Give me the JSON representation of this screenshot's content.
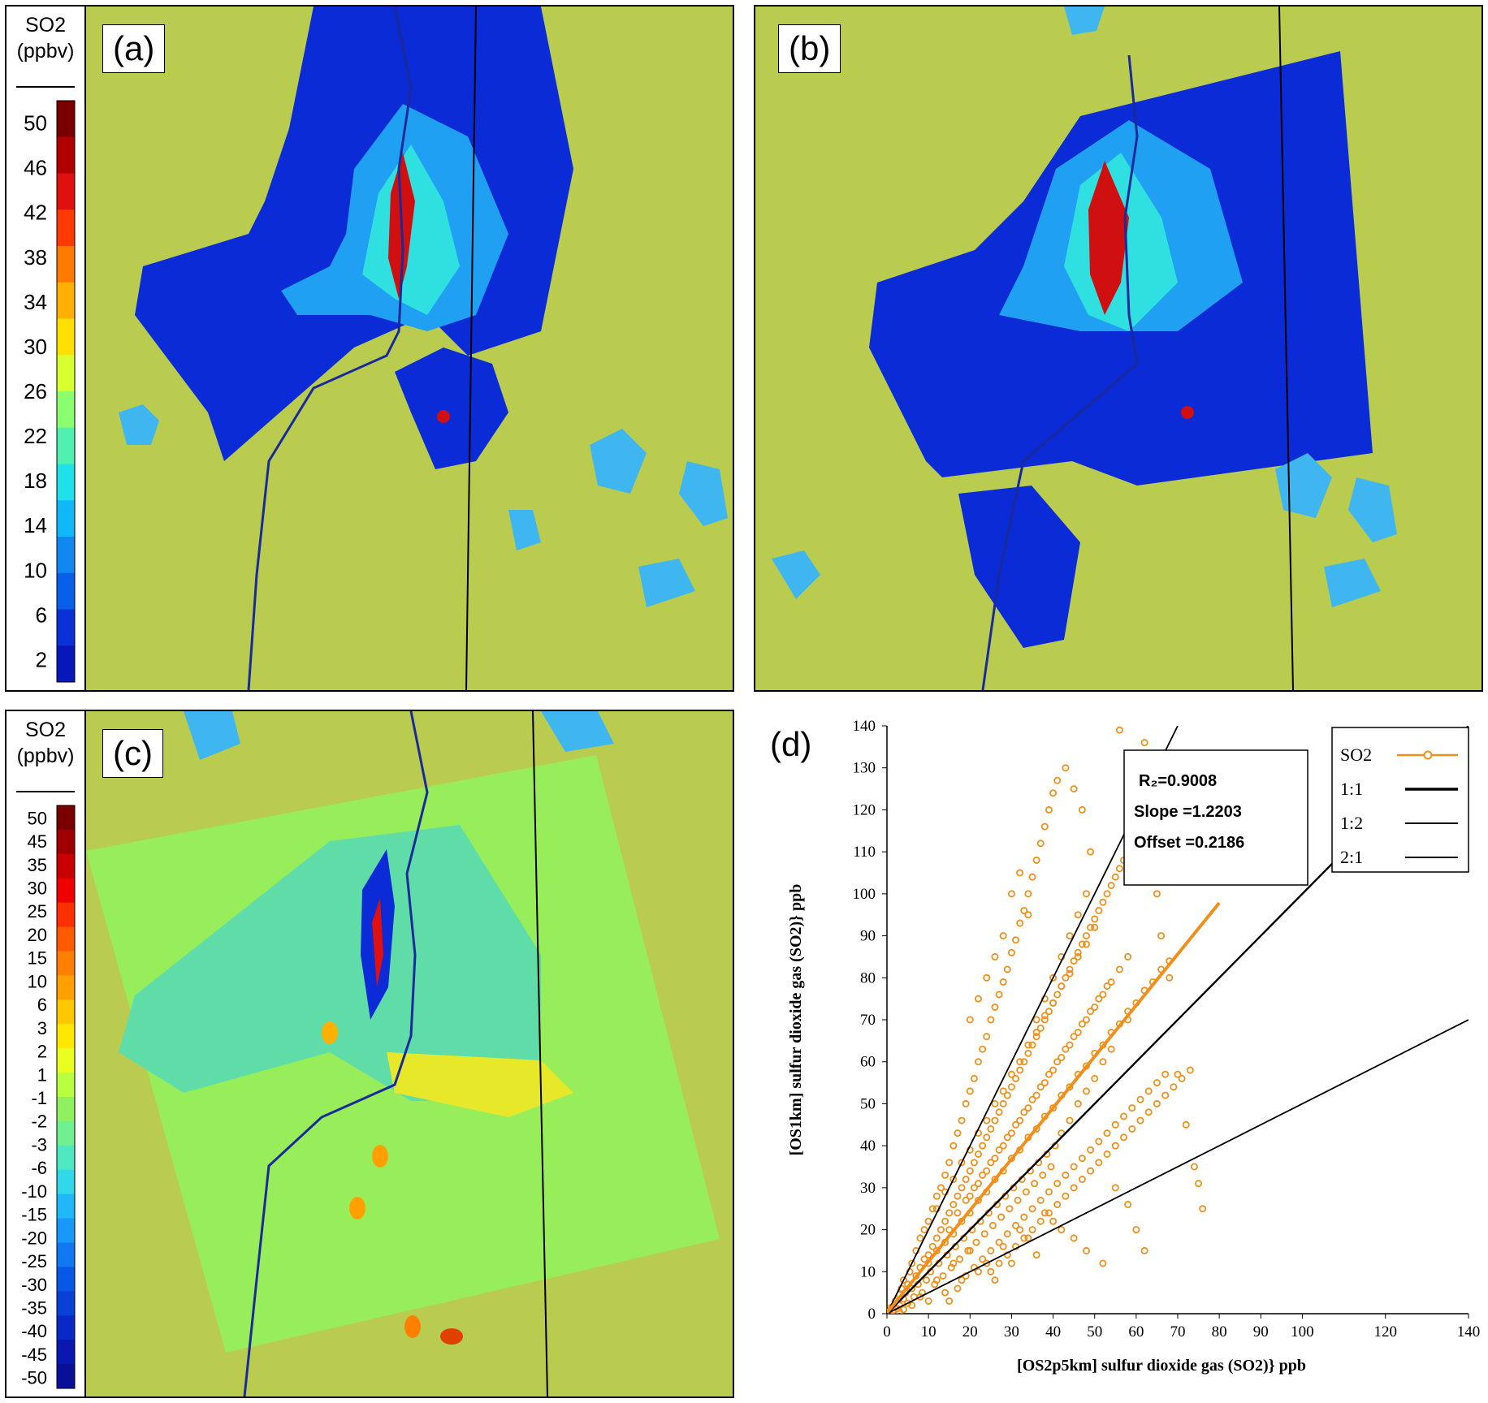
{
  "panels": {
    "a": {
      "label": "(a)"
    },
    "b": {
      "label": "(b)"
    },
    "c": {
      "label": "(c)"
    },
    "d": {
      "label": "(d)"
    }
  },
  "colorbar_a": {
    "title": "SO2",
    "unit": "(ppbv)",
    "ticks": [
      "50",
      "46",
      "42",
      "38",
      "34",
      "30",
      "26",
      "22",
      "18",
      "14",
      "10",
      "6",
      "2"
    ],
    "colors": [
      "#7a0000",
      "#b00000",
      "#e01010",
      "#ff3a00",
      "#ff7a00",
      "#ffb000",
      "#ffe000",
      "#d8ff30",
      "#8aff70",
      "#50f0b0",
      "#20e0e8",
      "#10b8f8",
      "#1088f0",
      "#0860e8",
      "#0a30d8",
      "#0818b8"
    ]
  },
  "colorbar_c": {
    "title": "SO2",
    "unit": "(ppbv)",
    "ticks": [
      "50",
      "45",
      "35",
      "30",
      "25",
      "20",
      "15",
      "10",
      "6",
      "3",
      "2",
      "1",
      "-1",
      "-2",
      "-3",
      "-6",
      "-10",
      "-15",
      "-20",
      "-25",
      "-30",
      "-35",
      "-40",
      "-45",
      "-50"
    ],
    "colors": [
      "#7a0000",
      "#a00000",
      "#c80000",
      "#f00000",
      "#ff3000",
      "#ff5a00",
      "#ff8000",
      "#ffa000",
      "#ffc800",
      "#ffe800",
      "#e8ff20",
      "#b8ff40",
      "#90f060",
      "#70f090",
      "#50e8c0",
      "#30d8e8",
      "#20b8f8",
      "#1898f8",
      "#1078f0",
      "#0858e8",
      "#0840d8",
      "#0828c8",
      "#0818b0",
      "#081098"
    ],
    "neutral_color": "#98ee5a"
  },
  "map_colors": {
    "land": "#b9cc4f",
    "water": "#3fb6f0",
    "outline": "#1a2a9a",
    "plume_low": "#0a2bd6",
    "plume_mid": "#1fa0f2",
    "plume_high": "#d01010"
  },
  "chart_data": {
    "type": "scatter",
    "title": "",
    "xlabel": "[OS2p5km]  sulfur  dioxide gas (SO2)} ppb",
    "ylabel": "[OS1km] sulfur  dioxide gas (SO2)} ppb",
    "xlim": [
      0,
      140
    ],
    "ylim": [
      0,
      140
    ],
    "x_ticks": [
      0,
      10,
      20,
      30,
      40,
      50,
      60,
      70,
      80,
      90,
      100,
      120,
      140
    ],
    "y_ticks": [
      0,
      10,
      20,
      30,
      40,
      50,
      60,
      70,
      80,
      90,
      100,
      110,
      120,
      130,
      140
    ],
    "stats": {
      "r2": "R₂=0.9008",
      "slope": "Slope =1.2203",
      "offset": "Offset =0.2186"
    },
    "legend": {
      "placement": "top-right",
      "entries": [
        "SO2",
        "1:1",
        "1:2",
        "2:1"
      ]
    },
    "series_color": "#f0901c",
    "fit": {
      "slope": 1.2203,
      "offset": 0.2186,
      "x_end": 80
    },
    "reference_lines": [
      {
        "name": "1:1",
        "slope": 1.0
      },
      {
        "name": "1:2",
        "slope": 0.5
      },
      {
        "name": "2:1",
        "slope": 2.0
      }
    ],
    "points": [
      [
        0.5,
        0.4
      ],
      [
        1,
        1.5
      ],
      [
        1.5,
        0.8
      ],
      [
        2,
        3
      ],
      [
        2.5,
        1.2
      ],
      [
        3,
        4.5
      ],
      [
        3,
        2
      ],
      [
        3.5,
        6
      ],
      [
        4,
        3.5
      ],
      [
        4,
        8
      ],
      [
        4.5,
        5
      ],
      [
        5,
        7
      ],
      [
        5,
        2.5
      ],
      [
        5.5,
        10
      ],
      [
        6,
        6
      ],
      [
        6,
        12
      ],
      [
        6.5,
        4
      ],
      [
        7,
        9
      ],
      [
        7,
        15
      ],
      [
        7.5,
        7
      ],
      [
        8,
        11
      ],
      [
        8,
        18
      ],
      [
        8.5,
        5
      ],
      [
        9,
        13
      ],
      [
        9,
        20
      ],
      [
        9.5,
        8
      ],
      [
        10,
        14
      ],
      [
        10,
        22
      ],
      [
        10.5,
        10
      ],
      [
        11,
        16
      ],
      [
        11,
        25
      ],
      [
        11.5,
        7
      ],
      [
        12,
        18
      ],
      [
        12,
        28
      ],
      [
        12.5,
        12
      ],
      [
        13,
        20
      ],
      [
        13,
        30
      ],
      [
        13.5,
        9
      ],
      [
        14,
        22
      ],
      [
        14,
        33
      ],
      [
        14.5,
        14
      ],
      [
        15,
        24
      ],
      [
        15,
        36
      ],
      [
        15.5,
        11
      ],
      [
        16,
        26
      ],
      [
        16,
        40
      ],
      [
        16.5,
        16
      ],
      [
        17,
        28
      ],
      [
        17,
        43
      ],
      [
        17.5,
        13
      ],
      [
        18,
        30
      ],
      [
        18,
        46
      ],
      [
        18.5,
        18
      ],
      [
        19,
        32
      ],
      [
        19,
        50
      ],
      [
        19.5,
        15
      ],
      [
        20,
        34
      ],
      [
        20,
        53
      ],
      [
        20.5,
        20
      ],
      [
        21,
        36
      ],
      [
        21,
        56
      ],
      [
        21.5,
        17
      ],
      [
        22,
        38
      ],
      [
        22,
        60
      ],
      [
        22.5,
        22
      ],
      [
        23,
        40
      ],
      [
        23,
        63
      ],
      [
        23.5,
        19
      ],
      [
        24,
        42
      ],
      [
        24,
        66
      ],
      [
        24.5,
        24
      ],
      [
        25,
        44
      ],
      [
        25,
        70
      ],
      [
        25.5,
        21
      ],
      [
        26,
        46
      ],
      [
        26,
        73
      ],
      [
        26.5,
        26
      ],
      [
        27,
        48
      ],
      [
        27,
        76
      ],
      [
        27.5,
        23
      ],
      [
        28,
        50
      ],
      [
        28,
        79
      ],
      [
        28.5,
        28
      ],
      [
        29,
        52
      ],
      [
        29,
        82
      ],
      [
        29.5,
        25
      ],
      [
        30,
        54
      ],
      [
        30,
        86
      ],
      [
        30.5,
        30
      ],
      [
        31,
        56
      ],
      [
        31,
        89
      ],
      [
        31.5,
        27
      ],
      [
        32,
        58
      ],
      [
        32,
        93
      ],
      [
        32.5,
        32
      ],
      [
        33,
        60
      ],
      [
        33,
        96
      ],
      [
        33.5,
        29
      ],
      [
        34,
        62
      ],
      [
        34,
        100
      ],
      [
        34.5,
        34
      ],
      [
        35,
        64
      ],
      [
        35,
        104
      ],
      [
        35.5,
        31
      ],
      [
        36,
        66
      ],
      [
        36,
        108
      ],
      [
        36.5,
        36
      ],
      [
        37,
        68
      ],
      [
        37,
        112
      ],
      [
        37.5,
        33
      ],
      [
        38,
        70
      ],
      [
        38,
        116
      ],
      [
        38.5,
        38
      ],
      [
        39,
        72
      ],
      [
        39,
        120
      ],
      [
        39.5,
        35
      ],
      [
        40,
        74
      ],
      [
        40,
        124
      ],
      [
        40.5,
        40
      ],
      [
        41,
        76
      ],
      [
        41,
        127
      ],
      [
        42,
        78
      ],
      [
        42,
        43
      ],
      [
        43,
        80
      ],
      [
        43,
        130
      ],
      [
        44,
        82
      ],
      [
        44,
        46
      ],
      [
        45,
        84
      ],
      [
        45,
        125
      ],
      [
        46,
        86
      ],
      [
        46,
        50
      ],
      [
        47,
        88
      ],
      [
        47,
        120
      ],
      [
        48,
        90
      ],
      [
        48,
        53
      ],
      [
        49,
        92
      ],
      [
        49,
        110
      ],
      [
        50,
        94
      ],
      [
        50,
        56
      ],
      [
        51,
        96
      ],
      [
        52,
        98
      ],
      [
        52,
        60
      ],
      [
        53,
        100
      ],
      [
        54,
        102
      ],
      [
        54,
        63
      ],
      [
        55,
        104
      ],
      [
        56,
        106
      ],
      [
        56,
        139
      ],
      [
        57,
        108
      ],
      [
        58,
        110
      ],
      [
        58,
        70
      ],
      [
        59,
        112
      ],
      [
        60,
        114
      ],
      [
        61,
        116
      ],
      [
        62,
        136
      ],
      [
        63,
        118
      ],
      [
        64,
        110
      ],
      [
        65,
        100
      ],
      [
        66,
        90
      ],
      [
        68,
        80
      ],
      [
        70,
        57
      ],
      [
        72,
        45
      ],
      [
        74,
        35
      ],
      [
        75,
        31
      ],
      [
        76,
        25
      ],
      [
        62,
        15
      ],
      [
        60,
        20
      ],
      [
        58,
        26
      ],
      [
        55,
        30
      ],
      [
        52,
        12
      ],
      [
        48,
        15
      ],
      [
        45,
        18
      ],
      [
        42,
        20
      ],
      [
        40,
        22
      ],
      [
        38,
        24
      ],
      [
        36,
        14
      ],
      [
        34,
        18
      ],
      [
        32,
        20
      ],
      [
        30,
        12
      ],
      [
        28,
        16
      ],
      [
        26,
        8
      ],
      [
        24,
        12
      ],
      [
        22,
        10
      ],
      [
        20,
        15
      ],
      [
        18,
        8
      ],
      [
        16,
        12
      ],
      [
        14,
        5
      ],
      [
        12,
        8
      ],
      [
        10,
        3
      ],
      [
        8,
        4
      ],
      [
        6,
        2
      ],
      [
        4,
        1
      ],
      [
        3,
        0.5
      ],
      [
        15,
        3
      ],
      [
        17,
        6
      ],
      [
        19,
        9
      ],
      [
        21,
        11
      ],
      [
        23,
        13
      ],
      [
        25,
        15
      ],
      [
        27,
        17
      ],
      [
        29,
        19
      ],
      [
        31,
        21
      ],
      [
        33,
        23
      ],
      [
        35,
        25
      ],
      [
        37,
        27
      ],
      [
        39,
        29
      ],
      [
        41,
        31
      ],
      [
        43,
        33
      ],
      [
        45,
        35
      ],
      [
        47,
        37
      ],
      [
        49,
        39
      ],
      [
        51,
        41
      ],
      [
        53,
        43
      ],
      [
        55,
        45
      ],
      [
        57,
        47
      ],
      [
        59,
        49
      ],
      [
        61,
        51
      ],
      [
        63,
        53
      ],
      [
        65,
        55
      ],
      [
        67,
        57
      ],
      [
        20,
        28
      ],
      [
        22,
        31
      ],
      [
        24,
        34
      ],
      [
        26,
        37
      ],
      [
        28,
        40
      ],
      [
        30,
        43
      ],
      [
        32,
        46
      ],
      [
        34,
        49
      ],
      [
        36,
        52
      ],
      [
        38,
        55
      ],
      [
        40,
        58
      ],
      [
        42,
        61
      ],
      [
        44,
        64
      ],
      [
        46,
        67
      ],
      [
        48,
        70
      ],
      [
        50,
        73
      ],
      [
        52,
        76
      ],
      [
        54,
        79
      ],
      [
        56,
        82
      ],
      [
        58,
        85
      ],
      [
        15,
        20
      ],
      [
        17,
        24
      ],
      [
        19,
        27
      ],
      [
        21,
        30
      ],
      [
        23,
        33
      ],
      [
        25,
        36
      ],
      [
        27,
        39
      ],
      [
        29,
        42
      ],
      [
        31,
        45
      ],
      [
        33,
        48
      ],
      [
        35,
        51
      ],
      [
        37,
        54
      ],
      [
        39,
        57
      ],
      [
        41,
        60
      ],
      [
        43,
        63
      ],
      [
        45,
        66
      ],
      [
        47,
        69
      ],
      [
        49,
        72
      ],
      [
        51,
        75
      ],
      [
        53,
        78
      ],
      [
        10,
        12
      ],
      [
        12,
        15
      ],
      [
        14,
        17
      ],
      [
        16,
        19
      ],
      [
        18,
        22
      ],
      [
        20,
        24
      ],
      [
        22,
        27
      ],
      [
        24,
        29
      ],
      [
        26,
        32
      ],
      [
        28,
        34
      ],
      [
        30,
        37
      ],
      [
        32,
        39
      ],
      [
        34,
        42
      ],
      [
        36,
        44
      ],
      [
        38,
        47
      ],
      [
        40,
        49
      ],
      [
        42,
        52
      ],
      [
        44,
        54
      ],
      [
        46,
        57
      ],
      [
        48,
        59
      ],
      [
        50,
        62
      ],
      [
        52,
        64
      ],
      [
        54,
        67
      ],
      [
        56,
        69
      ],
      [
        58,
        72
      ],
      [
        60,
        74
      ],
      [
        62,
        77
      ],
      [
        64,
        79
      ],
      [
        66,
        82
      ],
      [
        68,
        84
      ],
      [
        12,
        25
      ],
      [
        14,
        29
      ],
      [
        16,
        32
      ],
      [
        18,
        36
      ],
      [
        20,
        39
      ],
      [
        22,
        43
      ],
      [
        24,
        46
      ],
      [
        26,
        50
      ],
      [
        28,
        53
      ],
      [
        30,
        57
      ],
      [
        32,
        60
      ],
      [
        34,
        64
      ],
      [
        36,
        67
      ],
      [
        38,
        71
      ],
      [
        40,
        74
      ],
      [
        42,
        78
      ],
      [
        44,
        81
      ],
      [
        46,
        85
      ],
      [
        48,
        88
      ],
      [
        50,
        92
      ],
      [
        25,
        10
      ],
      [
        27,
        12
      ],
      [
        29,
        14
      ],
      [
        31,
        16
      ],
      [
        33,
        18
      ],
      [
        35,
        20
      ],
      [
        37,
        22
      ],
      [
        39,
        24
      ],
      [
        41,
        26
      ],
      [
        43,
        28
      ],
      [
        45,
        30
      ],
      [
        47,
        32
      ],
      [
        49,
        34
      ],
      [
        51,
        36
      ],
      [
        53,
        38
      ],
      [
        55,
        40
      ],
      [
        57,
        42
      ],
      [
        59,
        44
      ],
      [
        61,
        46
      ],
      [
        63,
        48
      ],
      [
        65,
        50
      ],
      [
        67,
        52
      ],
      [
        69,
        54
      ],
      [
        71,
        56
      ],
      [
        73,
        58
      ],
      [
        36,
        70
      ],
      [
        38,
        75
      ],
      [
        40,
        80
      ],
      [
        42,
        85
      ],
      [
        44,
        90
      ],
      [
        46,
        95
      ],
      [
        48,
        100
      ],
      [
        30,
        100
      ],
      [
        32,
        105
      ],
      [
        34,
        95
      ],
      [
        28,
        90
      ],
      [
        26,
        85
      ],
      [
        24,
        80
      ],
      [
        22,
        75
      ],
      [
        20,
        70
      ]
    ]
  }
}
